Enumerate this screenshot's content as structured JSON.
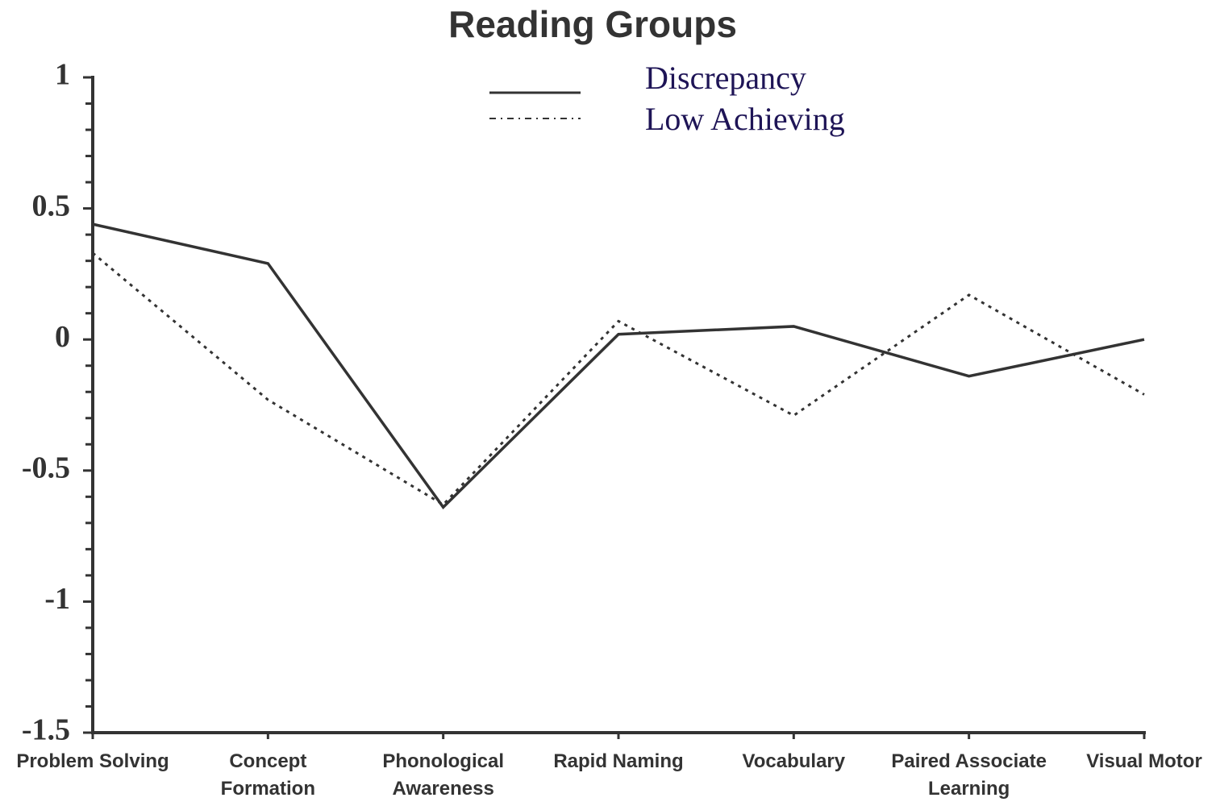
{
  "chart_data": {
    "type": "line",
    "title": "Reading Groups",
    "categories": [
      "Problem Solving",
      "Concept\nFormation",
      "Phonological\nAwareness",
      "Rapid Naming",
      "Vocabulary",
      "Paired Associate\nLearning",
      "Visual Motor"
    ],
    "series": [
      {
        "name": "Discrepancy",
        "color": "#333333",
        "dash": "solid",
        "values": [
          0.44,
          0.29,
          -0.64,
          0.02,
          0.05,
          -0.14,
          0
        ]
      },
      {
        "name": "Low Achieving",
        "color": "#333333",
        "dash": "dotted",
        "values": [
          0.33,
          -0.23,
          -0.63,
          0.07,
          -0.29,
          0.17,
          -0.21
        ]
      }
    ],
    "ylim": [
      -1.5,
      1
    ],
    "yticks": [
      -1.5,
      -1,
      -0.5,
      0,
      0.5,
      1
    ]
  }
}
